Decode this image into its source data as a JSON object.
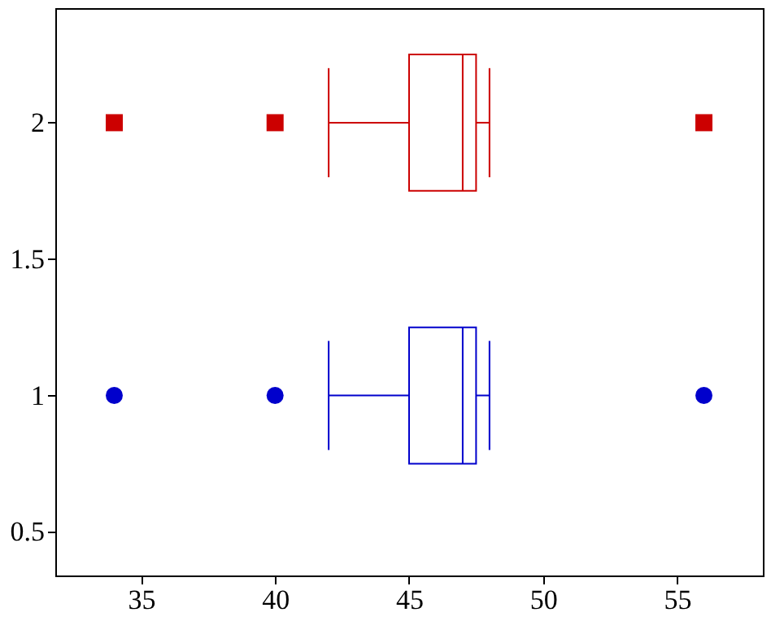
{
  "chart_data": {
    "type": "box",
    "orientation": "horizontal",
    "xlim": [
      31.8,
      58.2
    ],
    "xticks": [
      35,
      40,
      45,
      50,
      55
    ],
    "ylim": [
      0.34,
      2.42
    ],
    "yticks": [
      0.5,
      1,
      1.5,
      2
    ],
    "grid": false,
    "series": [
      {
        "color": "#0000cc",
        "marker": "circle",
        "x": [
          1
        ],
        "boxes": [
          {
            "low": 42,
            "q1": 45,
            "median": 47,
            "q3": 47.5,
            "high": 48,
            "outliers": [
              34,
              40,
              56
            ]
          }
        ]
      },
      {
        "color": "#cc0000",
        "marker": "square",
        "x": [
          2
        ],
        "boxes": [
          {
            "low": 42,
            "q1": 45,
            "median": 47,
            "q3": 47.5,
            "high": 48,
            "outliers": [
              34,
              40,
              56
            ]
          }
        ]
      }
    ]
  }
}
